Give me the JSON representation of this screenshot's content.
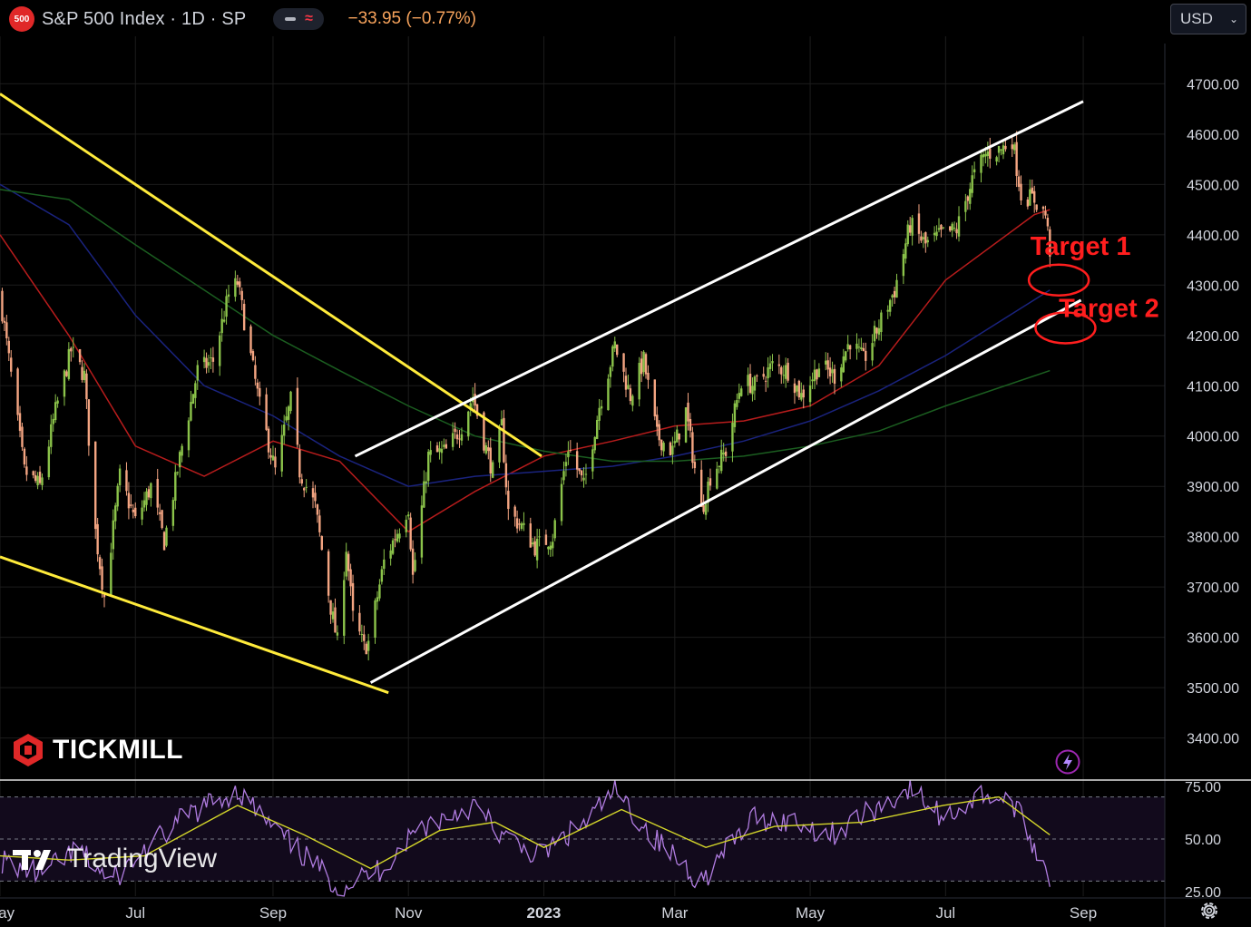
{
  "header": {
    "badge": "500",
    "symbol_title": "S&P 500 Index · 1D · SP",
    "change": "−33.95 (−0.77%)",
    "currency": "USD"
  },
  "watermarks": {
    "broker": "TICKMILL",
    "platform": "TradingView"
  },
  "icons": {
    "currency_chevron": "chevron-down-icon",
    "lightning": "lightning-icon",
    "settings": "gear-icon"
  },
  "colors": {
    "background": "#000000",
    "candle_up": "#8bc34a",
    "candle_down": "#f4a582",
    "ma_red": "#b71c1c",
    "ma_blue": "#1a237e",
    "ma_green": "#1b5e20",
    "channel": "#ffffff",
    "downtrend": "#ffeb3b",
    "target": "#ff1e1e",
    "rsi": "#b07ce0",
    "rsi_signal": "#d4d62a"
  },
  "chart_data": [
    {
      "type": "candlestick",
      "title": "S&P 500 Index · 1D · SP",
      "x_ticks": [
        {
          "label": "May",
          "date": "2022-05-01"
        },
        {
          "label": "Jul",
          "date": "2022-07-01"
        },
        {
          "label": "Sep",
          "date": "2022-09-01"
        },
        {
          "label": "Nov",
          "date": "2022-11-01"
        },
        {
          "label": "2023",
          "date": "2023-01-01"
        },
        {
          "label": "Mar",
          "date": "2023-03-01"
        },
        {
          "label": "May",
          "date": "2023-05-01"
        },
        {
          "label": "Jul",
          "date": "2023-07-01"
        },
        {
          "label": "Sep",
          "date": "2023-09-01"
        }
      ],
      "xlim": [
        "2022-05-01",
        "2023-09-30"
      ],
      "ylim": [
        3320,
        4780
      ],
      "y_ticks": [
        3400,
        3500,
        3600,
        3700,
        3800,
        3900,
        4000,
        4100,
        4200,
        4300,
        4400,
        4500,
        4600,
        4700
      ],
      "y_tick_labels": [
        "3400.00",
        "3500.00",
        "3600.00",
        "3700.00",
        "3800.00",
        "3900.00",
        "4000.00",
        "4100.00",
        "4200.00",
        "4300.00",
        "4400.00",
        "4500.00",
        "4600.00",
        "4700.00"
      ],
      "close_path": [
        [
          "2022-05-01",
          4280
        ],
        [
          "2022-05-06",
          4120
        ],
        [
          "2022-05-12",
          3930
        ],
        [
          "2022-05-19",
          3900
        ],
        [
          "2022-05-26",
          4050
        ],
        [
          "2022-06-02",
          4170
        ],
        [
          "2022-06-08",
          4120
        ],
        [
          "2022-06-13",
          3810
        ],
        [
          "2022-06-17",
          3680
        ],
        [
          "2022-06-24",
          3920
        ],
        [
          "2022-07-01",
          3830
        ],
        [
          "2022-07-08",
          3900
        ],
        [
          "2022-07-14",
          3790
        ],
        [
          "2022-07-22",
          3980
        ],
        [
          "2022-07-29",
          4130
        ],
        [
          "2022-08-05",
          4150
        ],
        [
          "2022-08-12",
          4280
        ],
        [
          "2022-08-16",
          4305
        ],
        [
          "2022-08-19",
          4230
        ],
        [
          "2022-08-26",
          4060
        ],
        [
          "2022-09-02",
          3930
        ],
        [
          "2022-09-09",
          4070
        ],
        [
          "2022-09-13",
          3930
        ],
        [
          "2022-09-20",
          3860
        ],
        [
          "2022-09-27",
          3660
        ],
        [
          "2022-09-30",
          3590
        ],
        [
          "2022-10-04",
          3780
        ],
        [
          "2022-10-07",
          3640
        ],
        [
          "2022-10-12",
          3580
        ],
        [
          "2022-10-14",
          3590
        ],
        [
          "2022-10-21",
          3750
        ],
        [
          "2022-10-27",
          3810
        ],
        [
          "2022-11-01",
          3860
        ],
        [
          "2022-11-03",
          3720
        ],
        [
          "2022-11-10",
          3960
        ],
        [
          "2022-11-18",
          3970
        ],
        [
          "2022-11-25",
          4020
        ],
        [
          "2022-11-30",
          4080
        ],
        [
          "2022-12-05",
          3990
        ],
        [
          "2022-12-09",
          3930
        ],
        [
          "2022-12-13",
          4020
        ],
        [
          "2022-12-16",
          3850
        ],
        [
          "2022-12-22",
          3820
        ],
        [
          "2022-12-28",
          3780
        ],
        [
          "2023-01-05",
          3800
        ],
        [
          "2023-01-12",
          3980
        ],
        [
          "2023-01-19",
          3900
        ],
        [
          "2023-01-26",
          4060
        ],
        [
          "2023-02-02",
          4180
        ],
        [
          "2023-02-09",
          4080
        ],
        [
          "2023-02-15",
          4150
        ],
        [
          "2023-02-21",
          4000
        ],
        [
          "2023-02-28",
          3970
        ],
        [
          "2023-03-06",
          4050
        ],
        [
          "2023-03-13",
          3850
        ],
        [
          "2023-03-17",
          3920
        ],
        [
          "2023-03-24",
          3970
        ],
        [
          "2023-03-31",
          4110
        ],
        [
          "2023-04-06",
          4100
        ],
        [
          "2023-04-14",
          4140
        ],
        [
          "2023-04-21",
          4130
        ],
        [
          "2023-04-27",
          4080
        ],
        [
          "2023-05-05",
          4140
        ],
        [
          "2023-05-12",
          4120
        ],
        [
          "2023-05-19",
          4190
        ],
        [
          "2023-05-25",
          4150
        ],
        [
          "2023-06-01",
          4220
        ],
        [
          "2023-06-08",
          4290
        ],
        [
          "2023-06-15",
          4420
        ],
        [
          "2023-06-22",
          4380
        ],
        [
          "2023-06-29",
          4400
        ],
        [
          "2023-07-06",
          4410
        ],
        [
          "2023-07-13",
          4510
        ],
        [
          "2023-07-19",
          4560
        ],
        [
          "2023-07-26",
          4570
        ],
        [
          "2023-07-31",
          4590
        ],
        [
          "2023-08-04",
          4480
        ],
        [
          "2023-08-10",
          4470
        ],
        [
          "2023-08-15",
          4440
        ],
        [
          "2023-08-17",
          4370
        ]
      ],
      "moving_averages": [
        {
          "color": "red",
          "points": [
            [
              "2022-05-01",
              4400
            ],
            [
              "2022-06-01",
              4200
            ],
            [
              "2022-07-01",
              3980
            ],
            [
              "2022-08-01",
              3920
            ],
            [
              "2022-09-01",
              3990
            ],
            [
              "2022-10-01",
              3950
            ],
            [
              "2022-11-01",
              3810
            ],
            [
              "2022-12-01",
              3890
            ],
            [
              "2023-01-01",
              3960
            ],
            [
              "2023-02-01",
              3990
            ],
            [
              "2023-03-01",
              4020
            ],
            [
              "2023-04-01",
              4030
            ],
            [
              "2023-05-01",
              4060
            ],
            [
              "2023-06-01",
              4140
            ],
            [
              "2023-07-01",
              4310
            ],
            [
              "2023-08-10",
              4440
            ],
            [
              "2023-08-17",
              4450
            ]
          ]
        },
        {
          "color": "blue",
          "points": [
            [
              "2022-05-01",
              4500
            ],
            [
              "2022-06-01",
              4420
            ],
            [
              "2022-07-01",
              4240
            ],
            [
              "2022-08-01",
              4100
            ],
            [
              "2022-09-01",
              4040
            ],
            [
              "2022-10-01",
              3960
            ],
            [
              "2022-11-01",
              3900
            ],
            [
              "2022-12-01",
              3920
            ],
            [
              "2023-01-01",
              3930
            ],
            [
              "2023-02-01",
              3940
            ],
            [
              "2023-03-01",
              3960
            ],
            [
              "2023-04-01",
              3990
            ],
            [
              "2023-05-01",
              4030
            ],
            [
              "2023-06-01",
              4090
            ],
            [
              "2023-07-01",
              4160
            ],
            [
              "2023-08-17",
              4290
            ]
          ]
        },
        {
          "color": "green",
          "points": [
            [
              "2022-05-01",
              4490
            ],
            [
              "2022-06-01",
              4470
            ],
            [
              "2022-07-01",
              4380
            ],
            [
              "2022-08-01",
              4290
            ],
            [
              "2022-09-01",
              4200
            ],
            [
              "2022-10-01",
              4130
            ],
            [
              "2022-11-01",
              4060
            ],
            [
              "2022-12-01",
              4000
            ],
            [
              "2023-01-01",
              3970
            ],
            [
              "2023-02-01",
              3950
            ],
            [
              "2023-03-01",
              3950
            ],
            [
              "2023-04-01",
              3960
            ],
            [
              "2023-05-01",
              3980
            ],
            [
              "2023-06-01",
              4010
            ],
            [
              "2023-07-01",
              4060
            ],
            [
              "2023-08-17",
              4130
            ]
          ]
        }
      ],
      "trendlines": [
        {
          "color": "yellow",
          "from": [
            "2022-05-01",
            4680
          ],
          "to": [
            "2022-12-31",
            3960
          ]
        },
        {
          "color": "yellow",
          "from": [
            "2022-05-01",
            3760
          ],
          "to": [
            "2022-10-23",
            3490
          ]
        },
        {
          "color": "white",
          "from": [
            "2022-10-08",
            3960
          ],
          "to": [
            "2023-09-01",
            4665
          ]
        },
        {
          "color": "white",
          "from": [
            "2022-10-15",
            3510
          ],
          "to": [
            "2023-08-31",
            4270
          ]
        }
      ],
      "annotations": [
        {
          "label": "Target 1",
          "date": "2023-08-21",
          "value": 4310
        },
        {
          "label": "Target 2",
          "date": "2023-08-24",
          "value": 4215
        }
      ]
    },
    {
      "type": "line",
      "title": "",
      "ylim": [
        25,
        75
      ],
      "y_ticks": [
        25,
        50,
        75
      ],
      "y_tick_labels": [
        "25.00",
        "50.00",
        "75.00"
      ],
      "series": [
        {
          "color": "purple",
          "points": [
            [
              "2022-05-01",
              40
            ],
            [
              "2022-05-20",
              33
            ],
            [
              "2022-06-05",
              45
            ],
            [
              "2022-06-20",
              30
            ],
            [
              "2022-07-05",
              44
            ],
            [
              "2022-07-25",
              62
            ],
            [
              "2022-08-16",
              73
            ],
            [
              "2022-09-01",
              55
            ],
            [
              "2022-09-15",
              42
            ],
            [
              "2022-10-01",
              27
            ],
            [
              "2022-10-20",
              36
            ],
            [
              "2022-11-05",
              55
            ],
            [
              "2022-11-30",
              66
            ],
            [
              "2022-12-15",
              50
            ],
            [
              "2022-12-30",
              42
            ],
            [
              "2023-01-20",
              58
            ],
            [
              "2023-02-02",
              73
            ],
            [
              "2023-02-20",
              50
            ],
            [
              "2023-03-13",
              30
            ],
            [
              "2023-04-05",
              60
            ],
            [
              "2023-04-25",
              58
            ],
            [
              "2023-05-10",
              52
            ],
            [
              "2023-06-15",
              74
            ],
            [
              "2023-06-30",
              60
            ],
            [
              "2023-07-19",
              72
            ],
            [
              "2023-08-01",
              66
            ],
            [
              "2023-08-17",
              32
            ]
          ]
        },
        {
          "color": "yellow",
          "points": [
            [
              "2022-05-01",
              42
            ],
            [
              "2022-06-01",
              40
            ],
            [
              "2022-07-05",
              42
            ],
            [
              "2022-08-16",
              66
            ],
            [
              "2022-09-15",
              52
            ],
            [
              "2022-10-15",
              36
            ],
            [
              "2022-11-15",
              54
            ],
            [
              "2022-12-10",
              58
            ],
            [
              "2023-01-01",
              46
            ],
            [
              "2023-02-05",
              64
            ],
            [
              "2023-03-15",
              46
            ],
            [
              "2023-04-15",
              56
            ],
            [
              "2023-05-25",
              58
            ],
            [
              "2023-06-30",
              66
            ],
            [
              "2023-07-25",
              70
            ],
            [
              "2023-08-17",
              52
            ]
          ]
        }
      ]
    }
  ]
}
